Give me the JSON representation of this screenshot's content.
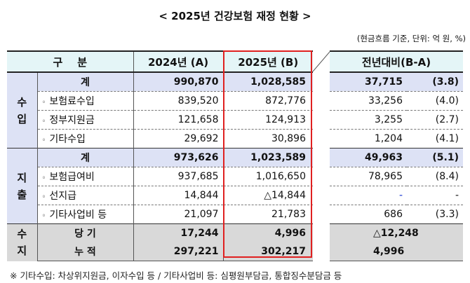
{
  "title": "< 2025년 건강보험 재정 현황 >",
  "unit": "(현금흐름 기준, 단위: 억 원, %)",
  "header": {
    "category": "구    분",
    "y2024": "2024년 (A)",
    "y2025": "2025년 (B)",
    "diff": "전년대비(B-A)"
  },
  "groups": {
    "income": "수\n입",
    "expense": "지\n출",
    "balance": "수\n지"
  },
  "rows": [
    {
      "label": "계",
      "y2024": "990,870",
      "y2025": "1,028,585",
      "diff": "37,715",
      "pct": "(3.8)"
    },
    {
      "label": "보험료수입",
      "y2024": "839,520",
      "y2025": "872,776",
      "diff": "33,256",
      "pct": "(4.0)"
    },
    {
      "label": "정부지원금",
      "y2024": "121,658",
      "y2025": "124,913",
      "diff": "3,255",
      "pct": "(2.7)"
    },
    {
      "label": "기타수입",
      "y2024": "29,692",
      "y2025": "30,896",
      "diff": "1,204",
      "pct": "(4.1)"
    },
    {
      "label": "계",
      "y2024": "973,626",
      "y2025": "1,023,589",
      "diff": "49,963",
      "pct": "(5.1)"
    },
    {
      "label": "보험급여비",
      "y2024": "937,685",
      "y2025": "1,016,650",
      "diff": "78,965",
      "pct": "(8.4)"
    },
    {
      "label": "선지급",
      "y2024": "14,844",
      "y2025": "△14,844",
      "diff": "-",
      "pct": "-"
    },
    {
      "label": "기타사업비 등",
      "y2024": "21,097",
      "y2025": "21,783",
      "diff": "686",
      "pct": "(3.3)"
    },
    {
      "label": "당 기",
      "y2024": "17,244",
      "y2025": "4,996",
      "diff": "△12,248",
      "pct": ""
    },
    {
      "label": "누 적",
      "y2024": "297,221",
      "y2025": "302,217",
      "diff": "4,996",
      "pct": ""
    }
  ],
  "bullet": "◦",
  "footnote": "※ 기타수입: 차상위지원금, 이자수입 등 / 기타사업비 등: 심평원부담금, 통합징수분담금 등"
}
